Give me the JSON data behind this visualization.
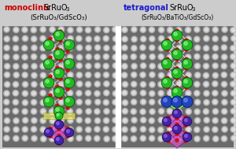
{
  "title_left_bold": "monoclinic",
  "title_left_bold_color": "#cc0000",
  "title_left_normal": " SrRuO",
  "title_left_sub": "3",
  "title_left_line2": "(SrRuO₃/GdScO₃)",
  "title_right_bold": "tetragonal",
  "title_right_bold_color": "#1a1acc",
  "title_right_normal": " SrRuO",
  "title_right_sub": "3",
  "title_right_line2": "(SrRuO₃/BaTiO₃/GdScO₃)",
  "green_color": "#22bb22",
  "green_edge": "#004400",
  "green_hi": "#99ff99",
  "purple_fill": "#cc55cc",
  "purple_edge": "#771177",
  "dark_purple": "#4422aa",
  "dark_purple_edge": "#110044",
  "dark_purple_hi": "#9977ee",
  "blue_fill": "#2244bb",
  "blue_edge": "#001155",
  "blue_hi": "#7799ff",
  "red_color": "#cc1111",
  "gray_line": "#cccccc",
  "white_line": "#eeeeee",
  "light_green_edge": "#55ff55",
  "yellow_fill": "#ffff66",
  "yellow_edge": "#999900",
  "stem_bg": "#888888",
  "stem_dot_dark": "#2a2a2a",
  "stem_dot_bright": "#cccccc",
  "fig_bg": "#cccccc",
  "divider_color": "#ffffff",
  "figwidth": 3.0,
  "figheight": 1.89,
  "dpi": 100
}
